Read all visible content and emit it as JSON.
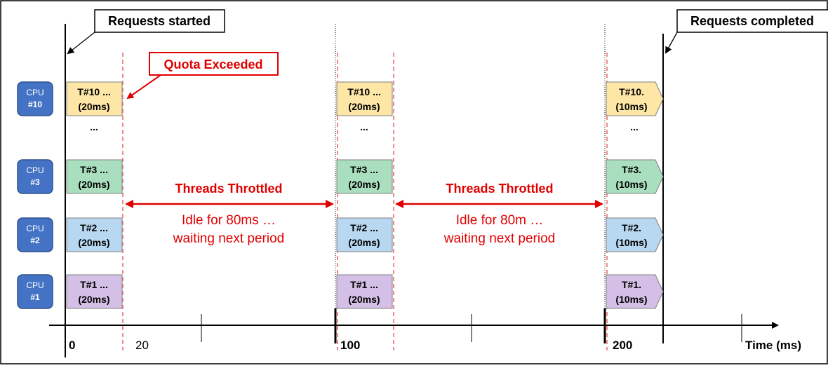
{
  "callouts": {
    "requests_started": "Requests started",
    "requests_completed": "Requests completed",
    "quota_exceeded": "Quota Exceeded"
  },
  "cpus": [
    {
      "label_line1": "CPU",
      "label_line2": "#10"
    },
    {
      "label_line1": "CPU",
      "label_line2": "#3"
    },
    {
      "label_line1": "CPU",
      "label_line2": "#2"
    },
    {
      "label_line1": "CPU",
      "label_line2": "#1"
    }
  ],
  "ellipsis": "...",
  "periods": [
    {
      "tasks": [
        {
          "line1": "T#10 ...",
          "line2": "(20ms)"
        },
        {
          "line1": "T#3 ...",
          "line2": "(20ms)"
        },
        {
          "line1": "T#2 ...",
          "line2": "(20ms)"
        },
        {
          "line1": "T#1 ...",
          "line2": "(20ms)"
        }
      ]
    },
    {
      "tasks": [
        {
          "line1": "T#10 ...",
          "line2": "(20ms)"
        },
        {
          "line1": "T#3 ...",
          "line2": "(20ms)"
        },
        {
          "line1": "T#2 ...",
          "line2": "(20ms)"
        },
        {
          "line1": "T#1 ...",
          "line2": "(20ms)"
        }
      ]
    },
    {
      "tasks": [
        {
          "line1": "T#10.",
          "line2": "(10ms)"
        },
        {
          "line1": "T#3.",
          "line2": "(10ms)"
        },
        {
          "line1": "T#2.",
          "line2": "(10ms)"
        },
        {
          "line1": "T#1.",
          "line2": "(10ms)"
        }
      ]
    }
  ],
  "throttle": [
    {
      "title": "Threads Throttled",
      "line1": "Idle for 80ms …",
      "line2": "waiting next period"
    },
    {
      "title": "Threads Throttled",
      "line1": "Idle for 80m …",
      "line2": "waiting next period"
    }
  ],
  "axis": {
    "ticks": [
      {
        "value": 0,
        "label": "0",
        "bold": true
      },
      {
        "value": 20,
        "label": "20",
        "bold": false
      },
      {
        "value": 100,
        "label": "100",
        "bold": true
      },
      {
        "value": 200,
        "label": "200",
        "bold": true
      }
    ],
    "label": "Time (ms)"
  },
  "colors": {
    "task_fill": [
      "#fde6a6",
      "#a9dfbf",
      "#b8d7f0",
      "#d4c0e6"
    ],
    "cpu_badge": "#4472c4",
    "accent_red": "#e00000",
    "dashed_red": "#f08080"
  }
}
